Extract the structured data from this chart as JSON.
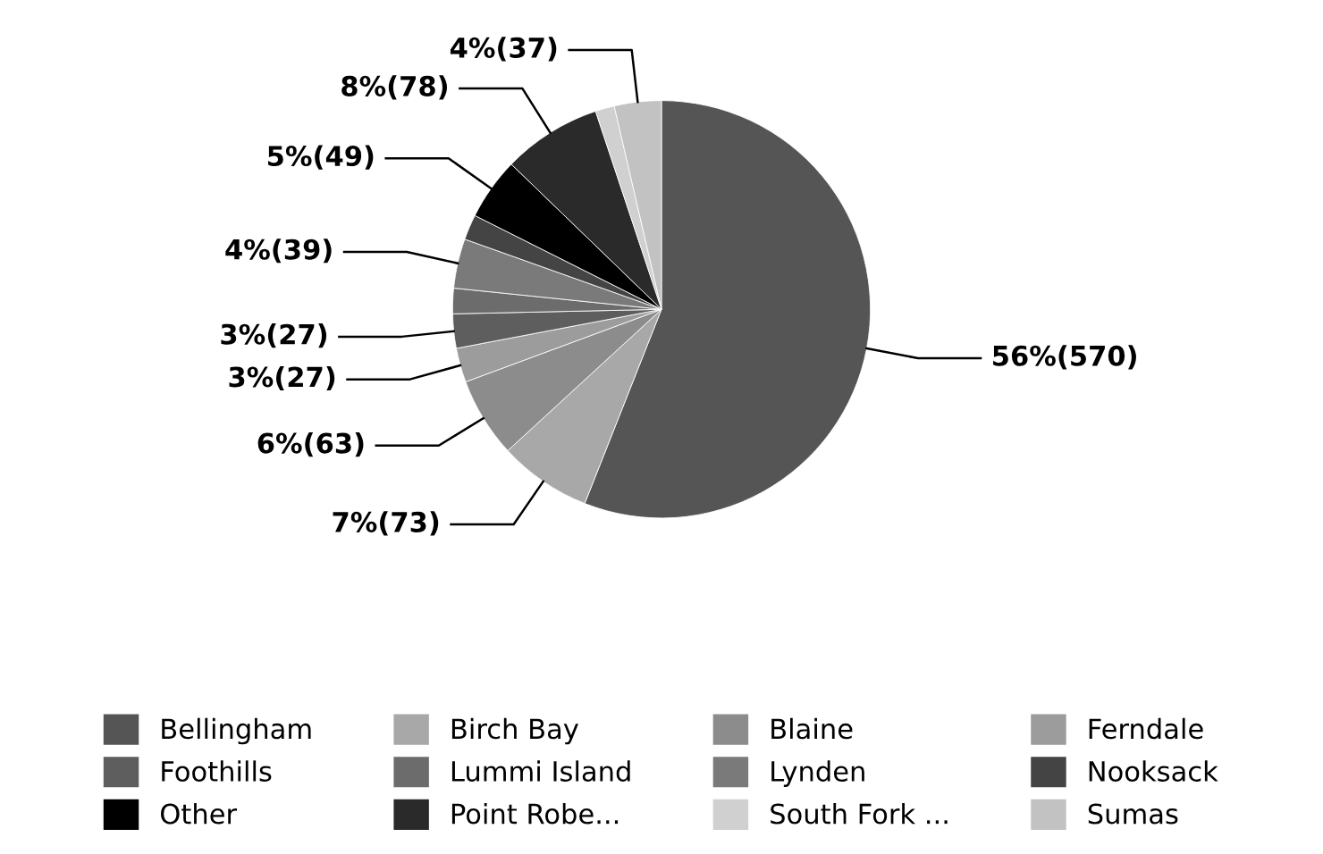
{
  "chart_data": {
    "type": "pie",
    "categories": [
      "Bellingham",
      "Birch Bay",
      "Blaine",
      "Ferndale",
      "Foothills",
      "Lummi Island",
      "Lynden",
      "Nooksack",
      "Other",
      "Point Robe...",
      "South Fork ...",
      "Sumas"
    ],
    "values": [
      570,
      73,
      63,
      27,
      27,
      20,
      39,
      20,
      49,
      78,
      15,
      37
    ],
    "value_labels": [
      "56%(570)",
      "7%(73)",
      "6%(63)",
      "3%(27)",
      "3%(27)",
      null,
      "4%(39)",
      null,
      "5%(49)",
      "8%(78)",
      null,
      "4%(37)"
    ],
    "colors": [
      "#555555",
      "#a8a8a8",
      "#8c8c8c",
      "#9c9c9c",
      "#5e5e5e",
      "#6c6c6c",
      "#7a7a7a",
      "#444444",
      "#000000",
      "#2a2a2a",
      "#d0d0d0",
      "#c2c2c2"
    ],
    "legend": "bottom"
  }
}
